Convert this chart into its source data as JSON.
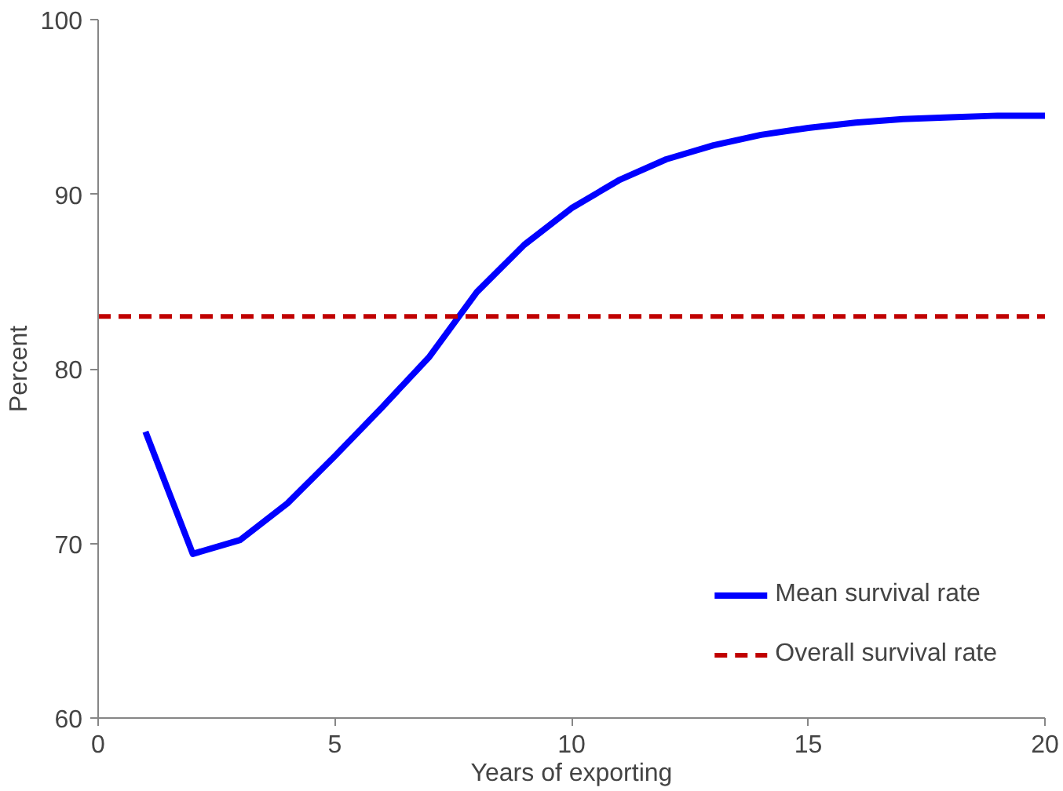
{
  "chart_data": {
    "type": "line",
    "xlabel": "Years of exporting",
    "ylabel": "Percent",
    "x": [
      1,
      2,
      3,
      4,
      5,
      6,
      7,
      8,
      9,
      10,
      11,
      12,
      13,
      14,
      15,
      16,
      17,
      18,
      19,
      20
    ],
    "series": [
      {
        "name": "Mean survival rate",
        "color": "#0000ff",
        "values": [
          76.4,
          69.4,
          70.2,
          72.3,
          75,
          77.8,
          80.7,
          84.4,
          87.1,
          89.2,
          90.8,
          92,
          92.8,
          93.4,
          93.8,
          94.1,
          94.3,
          94.4,
          94.5,
          94.5
        ]
      }
    ],
    "ref_lines": [
      {
        "axis": "y",
        "value": 83,
        "label": "Overall survival rate",
        "color": "#c00000",
        "line_style": "dashed"
      }
    ],
    "xlim": [
      0,
      20
    ],
    "ylim": [
      60,
      100
    ],
    "xticks": [
      0,
      5,
      10,
      15,
      20
    ],
    "yticks": [
      60,
      70,
      80,
      90,
      100
    ],
    "grid": false,
    "legend": "bottom right",
    "marker": "none",
    "line_style": "solid"
  }
}
